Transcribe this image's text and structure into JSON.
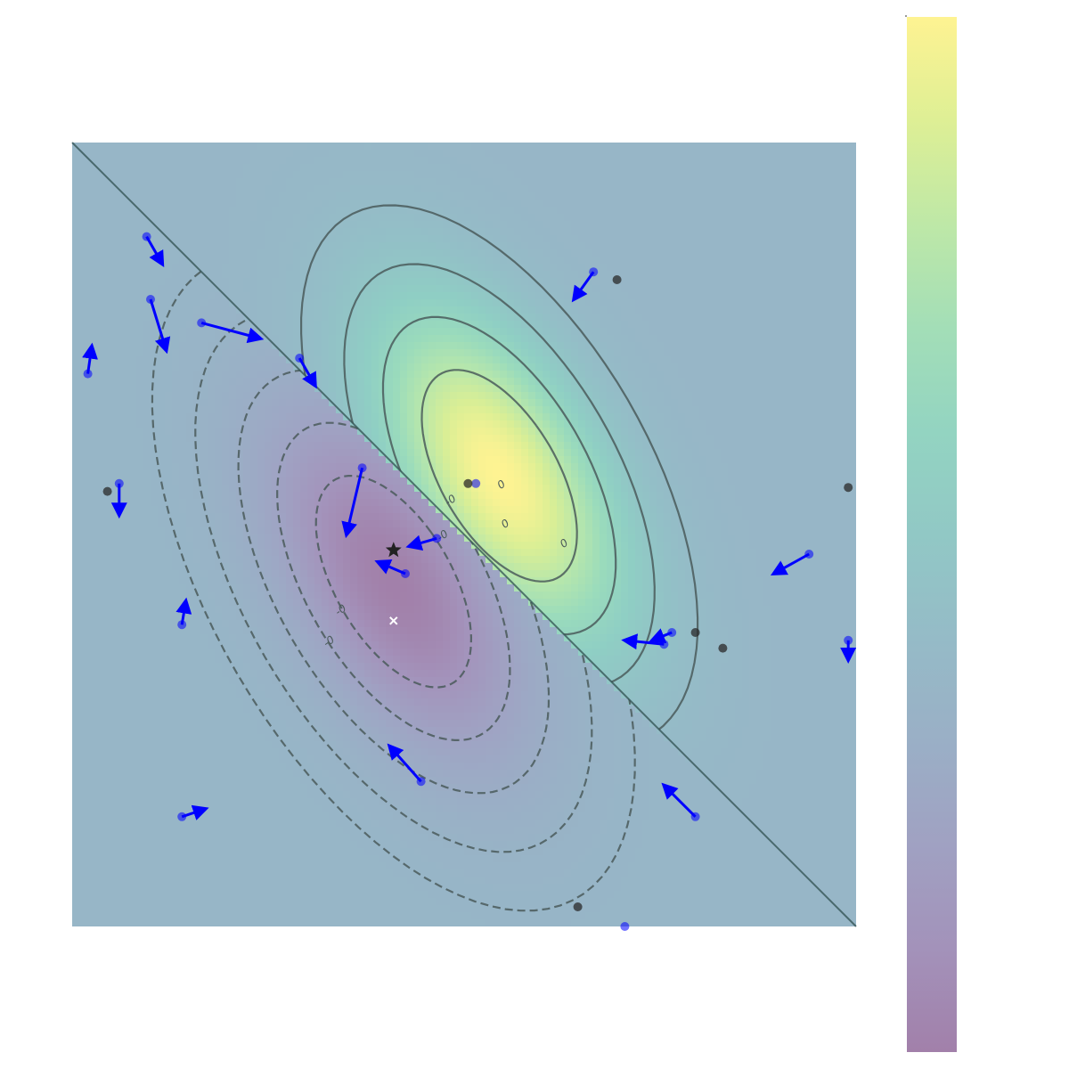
{
  "chart_data": {
    "type": "heatmap",
    "title": "",
    "xlabel": "",
    "ylabel": "",
    "xlim": [
      -1,
      1
    ],
    "ylim": [
      -1,
      1
    ],
    "axes_visible": false,
    "grid": false,
    "colormap": "viridis",
    "colormap_alpha": 0.5,
    "colorbar": {
      "position": "right",
      "ticks": []
    },
    "field": {
      "description_free": true,
      "positive_lobe": {
        "center": [
          0.09,
          0.15
        ],
        "peak": 1.0,
        "sx": 0.22,
        "sy": 0.3,
        "rho": -0.55
      },
      "negative_lobe": {
        "center": [
          -0.18,
          -0.12
        ],
        "peak": -0.55,
        "sx": 0.22,
        "sy": 0.3,
        "rho": -0.55
      }
    },
    "boundary_line": {
      "from": [
        -1,
        1
      ],
      "to": [
        1,
        -1
      ],
      "color": "#2f4f4f"
    },
    "contours": {
      "solid_labels": [
        "0",
        "0",
        "0"
      ],
      "dashed_labels": [
        "-0",
        "-0",
        "-0",
        "-0"
      ],
      "color": "#4a5a5a"
    },
    "vectors": [
      {
        "x": -0.81,
        "y": 0.76,
        "dx": 0.04,
        "dy": -0.07
      },
      {
        "x": -0.8,
        "y": 0.6,
        "dx": 0.04,
        "dy": -0.13
      },
      {
        "x": -0.67,
        "y": 0.54,
        "dx": 0.15,
        "dy": -0.04
      },
      {
        "x": -0.96,
        "y": 0.41,
        "dx": 0.01,
        "dy": 0.07
      },
      {
        "x": -0.42,
        "y": 0.45,
        "dx": 0.04,
        "dy": -0.07
      },
      {
        "x": -0.88,
        "y": 0.13,
        "dx": 0.0,
        "dy": -0.08
      },
      {
        "x": -0.26,
        "y": 0.17,
        "dx": -0.04,
        "dy": -0.17
      },
      {
        "x": 0.03,
        "y": 0.13,
        "dx": 0.0,
        "dy": 0.0
      },
      {
        "x": 0.33,
        "y": 0.67,
        "dx": -0.05,
        "dy": -0.07
      },
      {
        "x": -0.07,
        "y": -0.01,
        "dx": -0.07,
        "dy": -0.02
      },
      {
        "x": -0.15,
        "y": -0.1,
        "dx": -0.07,
        "dy": 0.03
      },
      {
        "x": 0.88,
        "y": -0.05,
        "dx": -0.09,
        "dy": -0.05
      },
      {
        "x": -0.72,
        "y": -0.23,
        "dx": 0.01,
        "dy": 0.06
      },
      {
        "x": 0.53,
        "y": -0.25,
        "dx": -0.05,
        "dy": -0.02
      },
      {
        "x": 0.51,
        "y": -0.28,
        "dx": -0.1,
        "dy": 0.01
      },
      {
        "x": 0.98,
        "y": -0.27,
        "dx": 0.0,
        "dy": -0.05
      },
      {
        "x": -0.11,
        "y": -0.63,
        "dx": -0.08,
        "dy": 0.09
      },
      {
        "x": -0.72,
        "y": -0.72,
        "dx": 0.06,
        "dy": 0.02
      },
      {
        "x": 0.59,
        "y": -0.72,
        "dx": -0.08,
        "dy": 0.08
      },
      {
        "x": 0.41,
        "y": -1.0,
        "dx": 0.0,
        "dy": 0.0
      }
    ],
    "dark_points": [
      {
        "x": 0.39,
        "y": 0.65
      },
      {
        "x": 0.01,
        "y": 0.13
      },
      {
        "x": -0.91,
        "y": 0.11
      },
      {
        "x": 0.98,
        "y": 0.12
      },
      {
        "x": 0.59,
        "y": -0.25
      },
      {
        "x": 0.66,
        "y": -0.29
      },
      {
        "x": 0.29,
        "y": -0.95
      }
    ],
    "star_marker": {
      "x": -0.18,
      "y": -0.04
    },
    "cross_marker": {
      "x": -0.18,
      "y": -0.22
    },
    "vector_color": "#0000ff",
    "dark_point_color": "#2a2a2a"
  }
}
